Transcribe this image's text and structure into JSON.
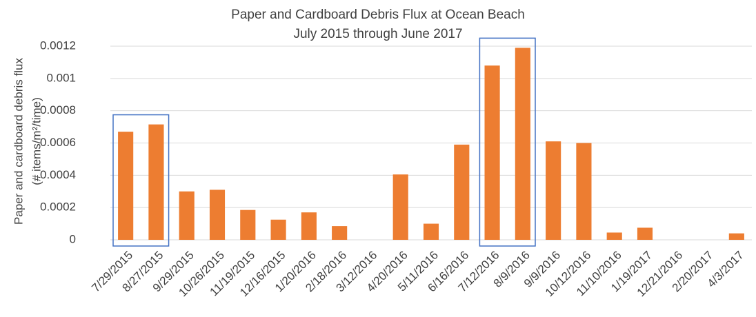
{
  "chart_data": {
    "type": "bar",
    "title": "Paper and Cardboard Debris Flux at Ocean Beach",
    "subtitle": "July 2015 through June 2017",
    "y_label": [
      "Paper and cardboard debris flux",
      "(# items/m²/time)"
    ],
    "categories": [
      "7/29/2015",
      "8/27/2015",
      "9/29/2015",
      "10/26/2015",
      "11/19/2015",
      "12/16/2015",
      "1/20/2016",
      "2/18/2016",
      "3/12/2016",
      "4/20/2016",
      "5/11/2016",
      "6/16/2016",
      "7/12/2016",
      "8/9/2016",
      "9/9/2016",
      "10/12/2016",
      "11/10/2016",
      "1/19/2017",
      "12/21/2016",
      "2/20/2017",
      "4/3/2017"
    ],
    "values": [
      0.00067,
      0.000715,
      0.0003,
      0.00031,
      0.000185,
      0.000125,
      0.00017,
      8.5e-05,
      0,
      0.000405,
      0.0001,
      0.00059,
      0.00108,
      0.00119,
      0.00061,
      0.0006,
      4.5e-05,
      7.5e-05,
      0,
      0,
      4e-05
    ],
    "color": "#ed7d31",
    "ylim": [
      0,
      0.0012
    ],
    "yticks": [
      0,
      0.0002,
      0.0004,
      0.0006,
      0.0008,
      0.001,
      0.0012
    ],
    "grid": true,
    "highlights": [
      [
        0,
        1
      ],
      [
        12,
        13
      ]
    ],
    "highlight_color": "#4472c4"
  }
}
